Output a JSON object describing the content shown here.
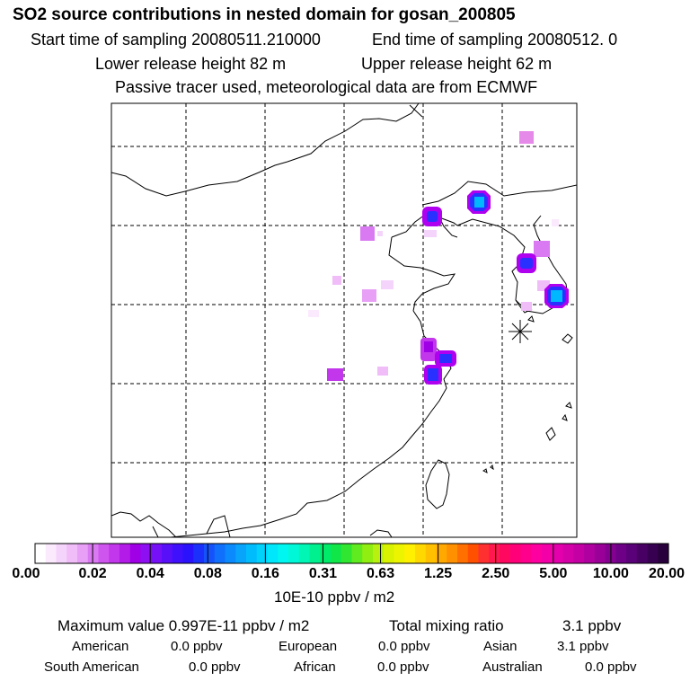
{
  "title": "SO2 source contributions in nested domain for gosan_200805",
  "sampling": {
    "start": "Start time of sampling 20080511.210000",
    "end": "End time of sampling 20080512.     0"
  },
  "release": {
    "lower": "Lower release height   82 m",
    "upper": "Upper release height   62 m"
  },
  "tracer_note": "Passive tracer used, meteorological data are from ECMWF",
  "colorbar": {
    "ticks": [
      "0.00",
      "0.02",
      "0.04",
      "0.08",
      "0.16",
      "0.31",
      "0.63",
      "1.25",
      "2.50",
      "5.00",
      "10.00",
      "20.00"
    ],
    "colors": [
      "#ffffff",
      "#fbe9fd",
      "#f5d4fb",
      "#f0bdf9",
      "#e8a0f6",
      "#da7af2",
      "#cf55ef",
      "#c236ec",
      "#b31be8",
      "#a000e6",
      "#8e10f2",
      "#7510f7",
      "#5810f9",
      "#3f10fb",
      "#2a12fc",
      "#1c30fc",
      "#1652fc",
      "#1070fc",
      "#0a8afc",
      "#08a4fc",
      "#00bcfc",
      "#00d2fc",
      "#00e6fa",
      "#00f6f0",
      "#00f8d8",
      "#00f6b4",
      "#00f090",
      "#00ea6a",
      "#10e648",
      "#30e630",
      "#60ea20",
      "#90ee10",
      "#b8f010",
      "#d8f200",
      "#ecf400",
      "#fff000",
      "#ffd800",
      "#ffc000",
      "#ffa800",
      "#ff9000",
      "#ff7000",
      "#ff5000",
      "#ff3030",
      "#ff1850",
      "#ff0860",
      "#ff0078",
      "#ff008c",
      "#ff00a0",
      "#f400a8",
      "#e400ac",
      "#d400a8",
      "#c400a4",
      "#b000a0",
      "#9a0098",
      "#840090",
      "#6e0088",
      "#5a0078",
      "#480064",
      "#380050",
      "#28003c"
    ]
  },
  "unit_label": "10E-10 ppbv / m2",
  "summary": {
    "max_value": "Maximum value  0.997E-11 ppbv / m2",
    "total_mixing_label": "Total mixing ratio",
    "total_mixing_value": "3.1 ppbv"
  },
  "regions": [
    {
      "name": "American",
      "value": "0.0 ppbv"
    },
    {
      "name": "European",
      "value": "0.0 ppbv"
    },
    {
      "name": "Asian",
      "value": "3.1 ppbv"
    },
    {
      "name": "South American",
      "value": "0.0 ppbv"
    },
    {
      "name": "African",
      "value": "0.0 ppbv"
    },
    {
      "name": "Australian",
      "value": "0.0 ppbv"
    }
  ],
  "hotspots": [
    {
      "id": "northeast-china",
      "level": "high"
    },
    {
      "id": "beijing",
      "level": "medium"
    },
    {
      "id": "korea-west",
      "level": "medium"
    },
    {
      "id": "korea-southeast",
      "level": "high"
    },
    {
      "id": "shanghai",
      "level": "medium"
    },
    {
      "id": "korea-east",
      "level": "low"
    }
  ],
  "colors": {
    "low": "#e58ae8",
    "mid": "#b000f0",
    "dark": "#2a30ff",
    "core": "#00b8ff",
    "grid": "#000000"
  }
}
